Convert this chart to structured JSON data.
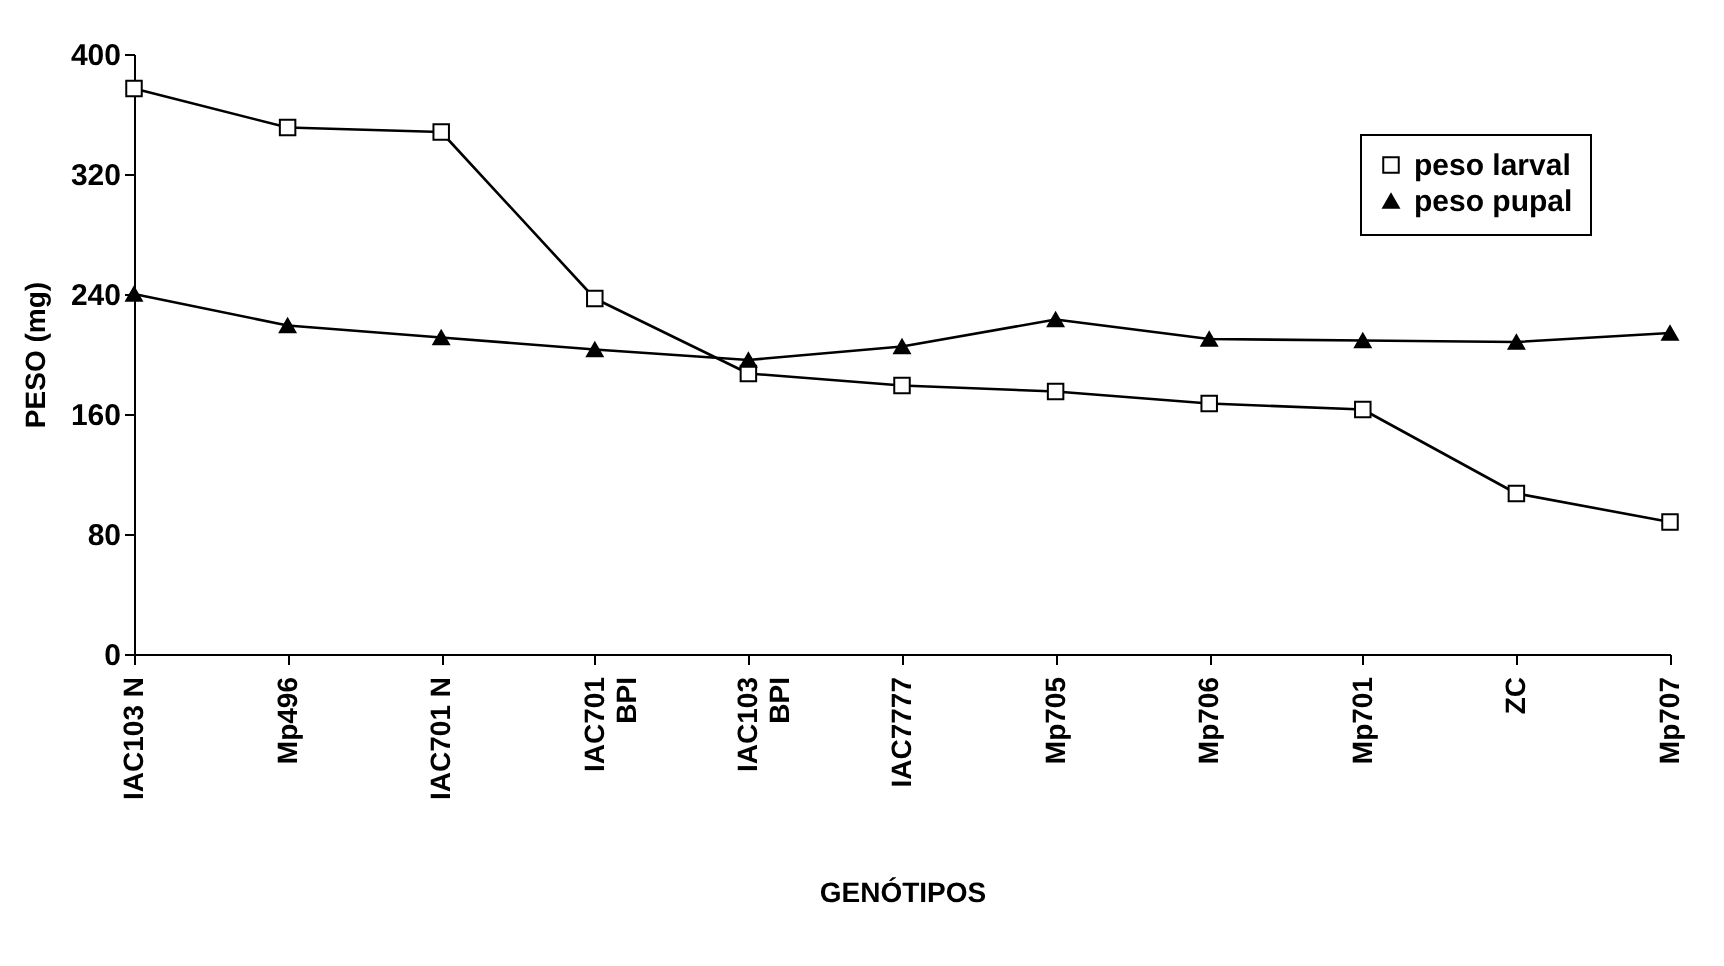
{
  "chart_data": {
    "type": "line",
    "xlabel": "GENÓTIPOS",
    "ylabel": "PESO (mg)",
    "categories": [
      "IAC103 N",
      "Mp496",
      "IAC701 N",
      "IAC701\nBPI",
      "IAC103\nBPI",
      "IAC7777",
      "Mp705",
      "Mp706",
      "Mp701",
      "ZC",
      "Mp707"
    ],
    "series": [
      {
        "name": "peso larval",
        "color": "#000000",
        "marker": "square",
        "values": [
          377,
          351,
          348,
          237,
          187,
          179,
          175,
          167,
          163,
          107,
          88
        ]
      },
      {
        "name": "peso pupal",
        "color": "#000000",
        "marker": "triangle",
        "values": [
          240,
          219,
          211,
          203,
          196,
          205,
          223,
          210,
          209,
          208,
          214
        ]
      }
    ],
    "ylim": [
      0,
      400
    ],
    "yticks": [
      0,
      80,
      160,
      240,
      320,
      400
    ],
    "grid": false,
    "legend": "top right",
    "line_style": "solid"
  }
}
